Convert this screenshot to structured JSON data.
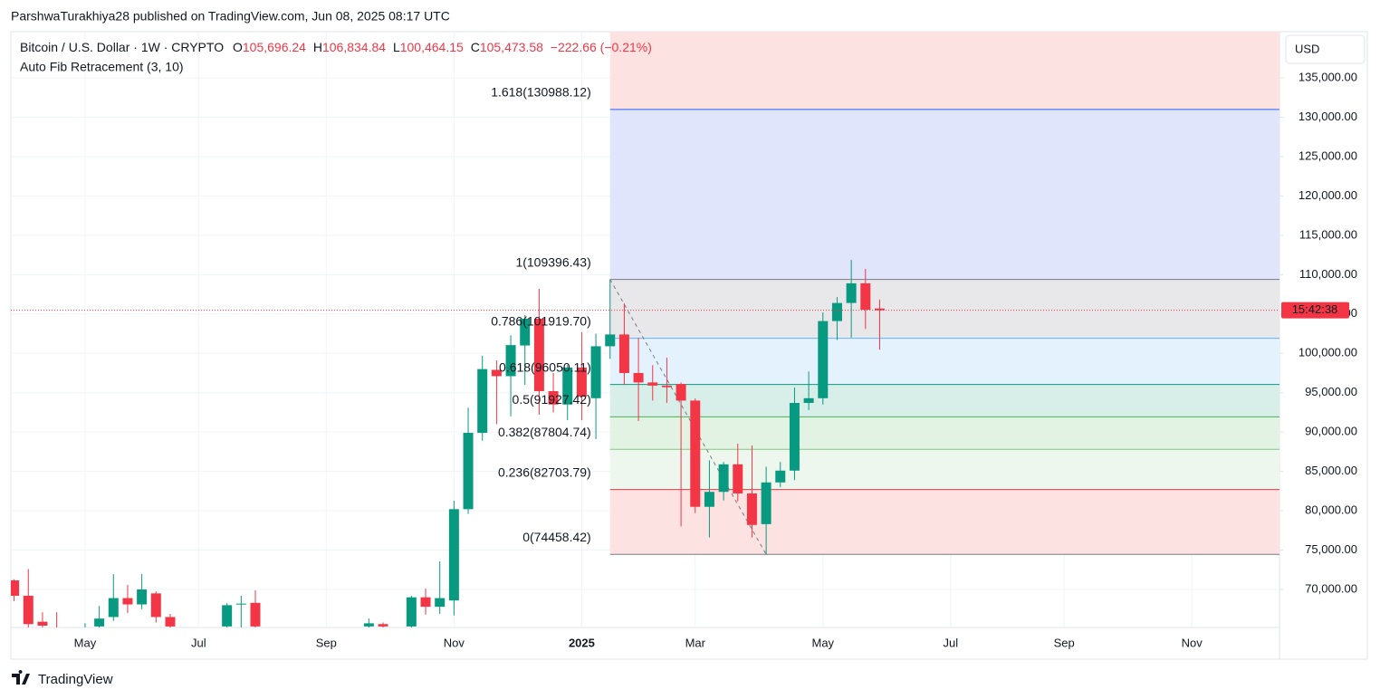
{
  "page": {
    "published": "ParshwaTurakhiya28 published on TradingView.com, Jun 08, 2025 08:17 UTC",
    "brand": "TradingView"
  },
  "chart_data": {
    "type": "candlestick",
    "header": {
      "symbol": "Bitcoin / U.S. Dollar · 1W · CRYPTO",
      "ohlc": [
        {
          "key": "O",
          "value": "105,696.24"
        },
        {
          "key": "H",
          "value": "106,834.84"
        },
        {
          "key": "L",
          "value": "100,464.15"
        },
        {
          "key": "C",
          "value": "105,473.58"
        }
      ],
      "change": "−222.66 (−0.21%)",
      "indicator": "Auto Fib Retracement (3, 10)"
    },
    "currency": "USD",
    "countdown": "15:42:38",
    "categories": [
      null,
      null,
      null,
      null,
      null,
      "May",
      null,
      null,
      null,
      null,
      null,
      null,
      null,
      "Jul",
      null,
      null,
      null,
      null,
      null,
      null,
      null,
      null,
      "Sep",
      null,
      null,
      null,
      null,
      null,
      null,
      null,
      null,
      "Nov",
      null,
      null,
      null,
      null,
      null,
      null,
      null,
      null,
      "2025",
      null,
      null,
      null,
      null,
      null,
      null,
      null,
      "Mar",
      null,
      null,
      null,
      null,
      null,
      null,
      null,
      null,
      "May",
      null,
      null,
      null,
      null,
      null,
      null,
      null,
      null,
      "Jul",
      null,
      null,
      null,
      null,
      null,
      null,
      null,
      "Sep",
      null,
      null,
      null,
      null,
      null,
      null,
      null,
      null,
      "Nov",
      null,
      null,
      null,
      null,
      null,
      null
    ],
    "open": [
      71150,
      69200,
      65900,
      65000,
      61000,
      63000,
      65300,
      66500,
      68900,
      68100,
      69500,
      66500,
      64000,
      62000,
      60000,
      65300,
      68100,
      68300,
      60000,
      58000,
      60000,
      64000,
      59000,
      57500,
      59000,
      65300,
      65600,
      63000,
      65300,
      69000,
      67800,
      68600,
      80200,
      89900,
      97900,
      97100,
      101000,
      104400,
      95200,
      93500,
      98200,
      94300,
      100900,
      102400,
      97500,
      96300,
      95900,
      96100,
      94000,
      80500,
      82400,
      85900,
      82200,
      78300,
      83600,
      85100,
      93700,
      94300,
      104100,
      106400,
      108900,
      105696.24,
      null,
      null,
      null,
      null,
      null,
      null,
      null,
      null,
      null,
      null,
      null,
      null,
      null,
      null,
      null,
      null,
      null,
      null,
      null,
      null,
      null,
      null,
      null,
      null,
      null,
      null,
      null,
      null
    ],
    "high": [
      71300,
      72600,
      67100,
      67100,
      64000,
      65700,
      67900,
      71950,
      70570,
      71950,
      69760,
      66890,
      64800,
      64500,
      63000,
      68270,
      69200,
      69880,
      62000,
      61500,
      64900,
      65000,
      61000,
      60500,
      61000,
      66310,
      65800,
      64000,
      69200,
      70100,
      73570,
      81270,
      93100,
      99700,
      99100,
      102300,
      104860,
      108190,
      97500,
      98500,
      102700,
      102500,
      109396.43,
      106350,
      101980,
      98500,
      99450,
      96300,
      94270,
      86400,
      86200,
      88520,
      88300,
      85600,
      86200,
      95650,
      97700,
      105200,
      107150,
      111870,
      110730,
      106834.84,
      null,
      null,
      null,
      null,
      null,
      null,
      null,
      null,
      null,
      null,
      null,
      null,
      null,
      null,
      null,
      null,
      null,
      null,
      null,
      null,
      null,
      null,
      null,
      null,
      null,
      null,
      null,
      null
    ],
    "low": [
      68500,
      64500,
      64500,
      62000,
      59000,
      60000,
      62000,
      66000,
      67000,
      67500,
      65800,
      64000,
      60000,
      58500,
      56500,
      64000,
      64000,
      64000,
      56000,
      55000,
      58000,
      57500,
      52500,
      56000,
      57000,
      62000,
      63000,
      59000,
      64500,
      66800,
      66900,
      66700,
      79600,
      88900,
      91000,
      92000,
      96000,
      92200,
      92500,
      91500,
      91500,
      89100,
      99300,
      96000,
      91400,
      94000,
      93700,
      78000,
      79700,
      76600,
      81300,
      81200,
      76600,
      74458.42,
      83000,
      83900,
      92800,
      93500,
      101700,
      102000,
      103100,
      100464.15,
      null,
      null,
      null,
      null,
      null,
      null,
      null,
      null,
      null,
      null,
      null,
      null,
      null,
      null,
      null,
      null,
      null,
      null,
      null,
      null,
      null,
      null,
      null,
      null,
      null,
      null,
      null,
      null
    ],
    "close": [
      69200,
      65600,
      65400,
      63800,
      60500,
      64000,
      66300,
      68900,
      68100,
      70000,
      66500,
      65300,
      63000,
      61000,
      58000,
      68000,
      68200,
      65300,
      58000,
      60000,
      64000,
      59000,
      57500,
      59000,
      60000,
      65700,
      65300,
      62500,
      69000,
      67800,
      68900,
      80200,
      89900,
      98000,
      97100,
      101050,
      104400,
      95200,
      93500,
      98200,
      94500,
      100900,
      102400,
      97500,
      96300,
      95900,
      95700,
      94000,
      80500,
      82400,
      85900,
      82200,
      78200,
      83600,
      85100,
      93700,
      94300,
      104100,
      106400,
      108900,
      105550,
      105473.58,
      null,
      null,
      null,
      null,
      null,
      null,
      null,
      null,
      null,
      null,
      null,
      null,
      null,
      null,
      null,
      null,
      null,
      null,
      null,
      null,
      null,
      null,
      null,
      null,
      null,
      null,
      null,
      null
    ],
    "up_color": "#089981",
    "down_color": "#f23645",
    "ylim": [
      65170,
      140870
    ],
    "yticks": [
      {
        "value": 70000,
        "label": "70,000.00"
      },
      {
        "value": 75000,
        "label": "75,000.00"
      },
      {
        "value": 80000,
        "label": "80,000.00"
      },
      {
        "value": 85000,
        "label": "85,000.00"
      },
      {
        "value": 90000,
        "label": "90,000.00"
      },
      {
        "value": 95000,
        "label": "95,000.00"
      },
      {
        "value": 100000,
        "label": "100,000.00"
      },
      {
        "value": 105000,
        "label": "105,000.00"
      },
      {
        "value": 110000,
        "label": "110,000.00"
      },
      {
        "value": 115000,
        "label": "115,000.00"
      },
      {
        "value": 120000,
        "label": "120,000.00"
      },
      {
        "value": 125000,
        "label": "125,000.00"
      },
      {
        "value": 130000,
        "label": "130,000.00"
      },
      {
        "value": 135000,
        "label": "135,000.00"
      }
    ],
    "grid": true,
    "fib_top_fill": "#fde2e2",
    "fib_levels": [
      {
        "ratio": 1.618,
        "price": 130988.12,
        "label": "1.618(130988.12)",
        "color": "#2962ff",
        "fill": "#e0e5fc"
      },
      {
        "ratio": 1,
        "price": 109396.43,
        "label": "1(109396.43)",
        "color": "#787b86",
        "fill": "#e8e8ea"
      },
      {
        "ratio": 0.786,
        "price": 101919.7,
        "label": "0.786(101919.70)",
        "color": "#64b5f6",
        "fill": "#e4f2fd"
      },
      {
        "ratio": 0.618,
        "price": 96050.11,
        "label": "0.618(96050.11)",
        "color": "#089981",
        "fill": "#d8eee8"
      },
      {
        "ratio": 0.5,
        "price": 91927.42,
        "label": "0.5(91927.42)",
        "color": "#4caf50",
        "fill": "#e2f2e3"
      },
      {
        "ratio": 0.382,
        "price": 87804.74,
        "label": "0.382(87804.74)",
        "color": "#81c784",
        "fill": "#edf7ee"
      },
      {
        "ratio": 0.236,
        "price": 82703.79,
        "label": "0.236(82703.79)",
        "color": "#f23645",
        "fill": "#fde2e2"
      },
      {
        "ratio": 0,
        "price": 74458.42,
        "label": "0(74458.42)",
        "color": "#787b86",
        "fill": null
      }
    ]
  }
}
